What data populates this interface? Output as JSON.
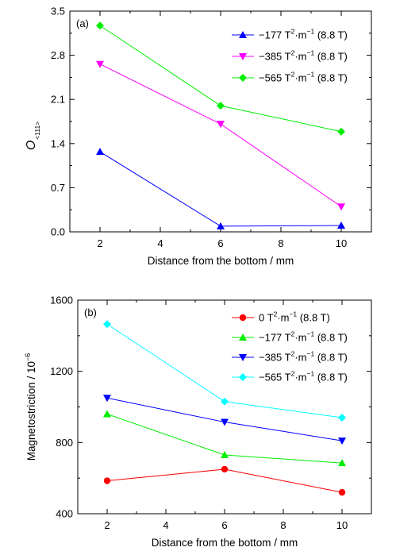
{
  "chart_data": [
    {
      "type": "line",
      "panel_label": "(a)",
      "xlabel": "Distance from the bottom / mm",
      "ylabel_main": "O",
      "ylabel_sub": "<111>",
      "xlim": [
        1,
        11
      ],
      "ylim": [
        0,
        3.5
      ],
      "xticks": [
        2,
        4,
        6,
        8,
        10
      ],
      "yticks": [
        0.0,
        0.7,
        1.4,
        2.1,
        2.8,
        3.5
      ],
      "ytick_labels": [
        "0.0",
        "0.7",
        "1.4",
        "2.1",
        "2.8",
        "3.5"
      ],
      "legend_position": "top-right",
      "series": [
        {
          "name_prefix": "−177 T",
          "name_suffix": "·m",
          "name_tail": " (8.8 T)",
          "color": "#0000ff",
          "marker": "triangle-up",
          "x": [
            2,
            6,
            10
          ],
          "y": [
            1.27,
            0.09,
            0.1
          ]
        },
        {
          "name_prefix": "−385 T",
          "name_suffix": "·m",
          "name_tail": " (8.8 T)",
          "color": "#ff00ff",
          "marker": "triangle-down",
          "x": [
            2,
            6,
            10
          ],
          "y": [
            2.66,
            1.71,
            0.4
          ]
        },
        {
          "name_prefix": "−565 T",
          "name_suffix": "·m",
          "name_tail": " (8.8 T)",
          "color": "#00ee00",
          "marker": "diamond",
          "x": [
            2,
            6,
            10
          ],
          "y": [
            3.27,
            2.0,
            1.59
          ]
        }
      ]
    },
    {
      "type": "line",
      "panel_label": "(b)",
      "xlabel": "Distance from the bottom / mm",
      "ylabel_main": "Magnetostriction / 10",
      "ylabel_sup": "−6",
      "xlim": [
        1,
        11
      ],
      "ylim": [
        400,
        1600
      ],
      "xticks": [
        2,
        4,
        6,
        8,
        10
      ],
      "yticks": [
        400,
        800,
        1200,
        1600
      ],
      "ytick_labels": [
        "400",
        "800",
        "1200",
        "1600"
      ],
      "legend_position": "top-right",
      "series": [
        {
          "name_prefix": "0 T",
          "name_suffix": "·m",
          "name_tail": " (8.8 T)",
          "color": "#ff0000",
          "marker": "circle",
          "x": [
            2,
            6,
            10
          ],
          "y": [
            585,
            650,
            520
          ]
        },
        {
          "name_prefix": "−177 T",
          "name_suffix": "·m",
          "name_tail": " (8.8 T)",
          "color": "#00ee00",
          "marker": "triangle-up",
          "x": [
            2,
            6,
            10
          ],
          "y": [
            960,
            730,
            685
          ]
        },
        {
          "name_prefix": "−385 T",
          "name_suffix": "·m",
          "name_tail": " (8.8 T)",
          "color": "#0000ff",
          "marker": "triangle-down",
          "x": [
            2,
            6,
            10
          ],
          "y": [
            1050,
            915,
            810
          ]
        },
        {
          "name_prefix": "−565 T",
          "name_suffix": "·m",
          "name_tail": " (8.8 T)",
          "color": "#00ffff",
          "marker": "diamond",
          "x": [
            2,
            6,
            10
          ],
          "y": [
            1465,
            1030,
            940
          ]
        }
      ]
    }
  ]
}
